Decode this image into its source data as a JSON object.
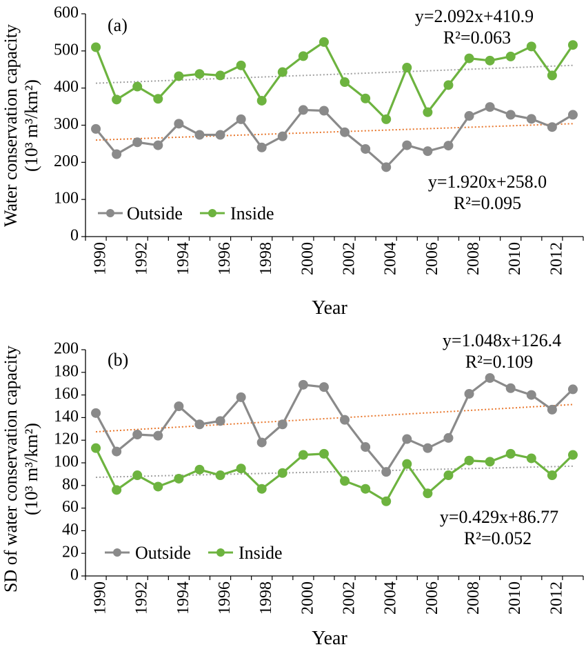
{
  "colors": {
    "outside": "#8a8a8a",
    "inside": "#6db33f",
    "trend_outside": "#e8762b",
    "trend_inside": "#a0a0a0"
  },
  "legend": {
    "outside": "Outside",
    "inside": "Inside"
  },
  "chart_data": [
    {
      "type": "line",
      "panel_label": "(a)",
      "xlabel": "Year",
      "ylabel_line1": "Water conservation capacity",
      "ylabel_line2": "(10³ m³/km²)",
      "x_ticks": [
        "1990",
        "1992",
        "1994",
        "1996",
        "1998",
        "2000",
        "2002",
        "2004",
        "2006",
        "2008",
        "2010",
        "2012"
      ],
      "y_ticks": [
        "0",
        "100",
        "200",
        "300",
        "400",
        "500",
        "600"
      ],
      "ylim": [
        0,
        600
      ],
      "xlim": [
        1989.5,
        2013.5
      ],
      "x": [
        1990,
        1991,
        1992,
        1993,
        1994,
        1995,
        1996,
        1997,
        1998,
        1999,
        2000,
        2001,
        2002,
        2003,
        2004,
        2005,
        2006,
        2007,
        2008,
        2009,
        2010,
        2011,
        2012,
        2013
      ],
      "series": [
        {
          "name": "Outside",
          "values": [
            290,
            222,
            254,
            246,
            304,
            274,
            274,
            316,
            240,
            270,
            341,
            339,
            281,
            236,
            187,
            246,
            230,
            245,
            325,
            349,
            328,
            317,
            295,
            328
          ],
          "trend": {
            "intercept": 258.0,
            "slope": 1.92,
            "eq": "y=1.920x+258.0",
            "r2": "R²=0.095"
          }
        },
        {
          "name": "Inside",
          "values": [
            510,
            369,
            404,
            371,
            432,
            438,
            434,
            461,
            366,
            443,
            486,
            524,
            416,
            372,
            316,
            455,
            335,
            408,
            480,
            474,
            485,
            512,
            434,
            516
          ],
          "trend": {
            "intercept": 410.9,
            "slope": 2.092,
            "eq": "y=2.092x+410.9",
            "r2": "R²=0.063"
          }
        }
      ]
    },
    {
      "type": "line",
      "panel_label": "(b)",
      "xlabel": "Year",
      "ylabel_line1": "SD of water conservation capacity",
      "ylabel_line2": "(10³ m³/km²)",
      "x_ticks": [
        "1990",
        "1992",
        "1994",
        "1996",
        "1998",
        "2000",
        "2002",
        "2004",
        "2006",
        "2008",
        "2010",
        "2012"
      ],
      "y_ticks": [
        "0",
        "20",
        "40",
        "60",
        "80",
        "100",
        "120",
        "140",
        "160",
        "180",
        "200"
      ],
      "ylim": [
        0,
        200
      ],
      "xlim": [
        1989.5,
        2013.5
      ],
      "x": [
        1990,
        1991,
        1992,
        1993,
        1994,
        1995,
        1996,
        1997,
        1998,
        1999,
        2000,
        2001,
        2002,
        2003,
        2004,
        2005,
        2006,
        2007,
        2008,
        2009,
        2010,
        2011,
        2012,
        2013
      ],
      "series": [
        {
          "name": "Outside",
          "values": [
            144,
            110,
            125,
            124,
            150,
            134,
            137,
            158,
            118,
            134,
            169,
            167,
            138,
            114,
            92,
            121,
            113,
            122,
            161,
            175,
            166,
            160,
            147,
            165
          ],
          "trend": {
            "intercept": 126.4,
            "slope": 1.048,
            "eq": "y=1.048x+126.4",
            "r2": "R²=0.109"
          }
        },
        {
          "name": "Inside",
          "values": [
            113,
            76,
            89,
            79,
            86,
            94,
            89,
            95,
            77,
            91,
            107,
            108,
            84,
            77,
            66,
            99,
            73,
            89,
            102,
            101,
            108,
            104,
            89,
            107
          ],
          "trend": {
            "intercept": 86.77,
            "slope": 0.429,
            "eq": "y=0.429x+86.77",
            "r2": "R²=0.052"
          }
        }
      ]
    }
  ]
}
